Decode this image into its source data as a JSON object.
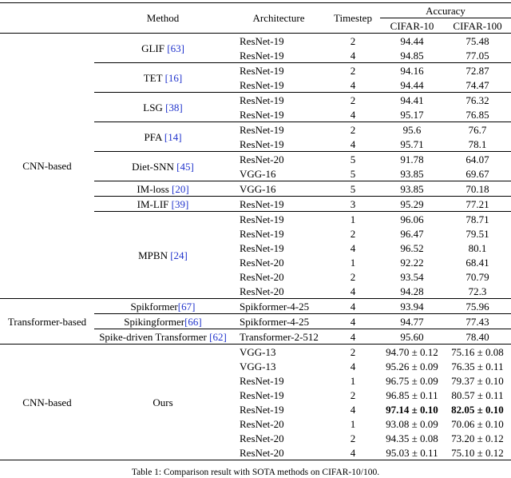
{
  "colors": {
    "citation": "#2033cc",
    "rule": "#000000",
    "background": "#ffffff"
  },
  "caption": "Table 1: Comparison result with SOTA methods on CIFAR-10/100.",
  "header": {
    "method": "Method",
    "architecture": "Architecture",
    "timestep": "Timestep",
    "accuracy": "Accuracy",
    "cifar10": "CIFAR-10",
    "cifar100": "CIFAR-100"
  },
  "groups": [
    {
      "label": "CNN-based",
      "methods": [
        {
          "label": "GLIF ",
          "cite": "[63]",
          "rows": [
            {
              "arch": "ResNet-19",
              "t": "2",
              "c10": "94.44",
              "c100": "75.48"
            },
            {
              "arch": "ResNet-19",
              "t": "4",
              "c10": "94.85",
              "c100": "77.05"
            }
          ]
        },
        {
          "label": "TET ",
          "cite": "[16]",
          "rows": [
            {
              "arch": "ResNet-19",
              "t": "2",
              "c10": "94.16",
              "c100": "72.87"
            },
            {
              "arch": "ResNet-19",
              "t": "4",
              "c10": "94.44",
              "c100": "74.47"
            }
          ]
        },
        {
          "label": "LSG ",
          "cite": "[38]",
          "rows": [
            {
              "arch": "ResNet-19",
              "t": "2",
              "c10": "94.41",
              "c100": "76.32"
            },
            {
              "arch": "ResNet-19",
              "t": "4",
              "c10": "95.17",
              "c100": "76.85"
            }
          ]
        },
        {
          "label": "PFA ",
          "cite": "[14]",
          "rows": [
            {
              "arch": "ResNet-19",
              "t": "2",
              "c10": "95.6",
              "c100": "76.7"
            },
            {
              "arch": "ResNet-19",
              "t": "4",
              "c10": "95.71",
              "c100": "78.1"
            }
          ]
        },
        {
          "label": "Diet-SNN ",
          "cite": "[45]",
          "rows": [
            {
              "arch": "ResNet-20",
              "t": "5",
              "c10": "91.78",
              "c100": "64.07"
            },
            {
              "arch": "VGG-16",
              "t": "5",
              "c10": "93.85",
              "c100": "69.67"
            }
          ]
        },
        {
          "label": "IM-loss ",
          "cite": "[20]",
          "rows": [
            {
              "arch": "VGG-16",
              "t": "5",
              "c10": "93.85",
              "c100": "70.18"
            }
          ]
        },
        {
          "label": "IM-LIF ",
          "cite": "[39]",
          "rows": [
            {
              "arch": "ResNet-19",
              "t": "3",
              "c10": "95.29",
              "c100": "77.21"
            }
          ]
        },
        {
          "label": "MPBN ",
          "cite": "[24]",
          "rows": [
            {
              "arch": "ResNet-19",
              "t": "1",
              "c10": "96.06",
              "c100": "78.71"
            },
            {
              "arch": "ResNet-19",
              "t": "2",
              "c10": "96.47",
              "c100": "79.51"
            },
            {
              "arch": "ResNet-19",
              "t": "4",
              "c10": "96.52",
              "c100": "80.1"
            },
            {
              "arch": "ResNet-20",
              "t": "1",
              "c10": "92.22",
              "c100": "68.41"
            },
            {
              "arch": "ResNet-20",
              "t": "2",
              "c10": "93.54",
              "c100": "70.79"
            },
            {
              "arch": "ResNet-20",
              "t": "4",
              "c10": "94.28",
              "c100": "72.3"
            }
          ]
        }
      ]
    },
    {
      "label": "Transformer-based",
      "methods": [
        {
          "label": "Spikformer",
          "cite": "[67]",
          "rows": [
            {
              "arch": "Spikformer-4-25",
              "t": "4",
              "c10": "93.94",
              "c100": "75.96"
            }
          ]
        },
        {
          "label": "Spikingformer",
          "cite": "[66]",
          "rows": [
            {
              "arch": "Spikformer-4-25",
              "t": "4",
              "c10": "94.77",
              "c100": "77.43"
            }
          ]
        },
        {
          "label": "Spike-driven Transformer ",
          "cite": "[62]",
          "rows": [
            {
              "arch": "Transformer-2-512",
              "t": "4",
              "c10": "95.60",
              "c100": "78.40"
            }
          ]
        }
      ]
    },
    {
      "label": "CNN-based",
      "methods": [
        {
          "label": "Ours",
          "cite": "",
          "rows": [
            {
              "arch": "VGG-13",
              "t": "2",
              "c10": "94.70 ± 0.12",
              "c100": "75.16 ± 0.08"
            },
            {
              "arch": "VGG-13",
              "t": "4",
              "c10": "95.26 ± 0.09",
              "c100": "76.35 ± 0.11"
            },
            {
              "arch": "ResNet-19",
              "t": "1",
              "c10": "96.75 ± 0.09",
              "c100": "79.37 ± 0.10"
            },
            {
              "arch": "ResNet-19",
              "t": "2",
              "c10": "96.85 ± 0.11",
              "c100": "80.57 ± 0.11"
            },
            {
              "arch": "ResNet-19",
              "t": "4",
              "c10": "97.14 ± 0.10",
              "c100": "82.05 ± 0.10"
            },
            {
              "arch": "ResNet-20",
              "t": "1",
              "c10": "93.08 ± 0.09",
              "c100": "70.06 ± 0.10"
            },
            {
              "arch": "ResNet-20",
              "t": "2",
              "c10": "94.35 ± 0.08",
              "c100": "73.20 ± 0.12"
            },
            {
              "arch": "ResNet-20",
              "t": "4",
              "c10": "95.03 ± 0.11",
              "c100": "75.10 ± 0.12"
            }
          ]
        }
      ]
    }
  ]
}
